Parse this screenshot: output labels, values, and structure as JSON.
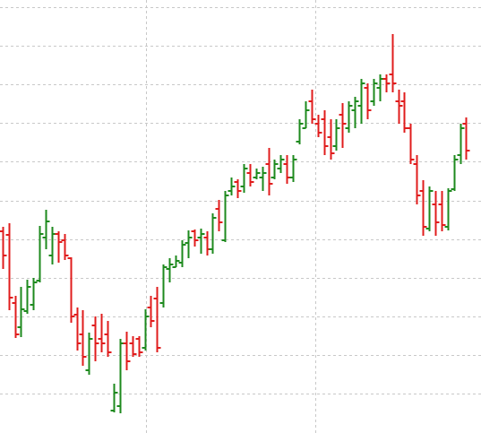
{
  "chart_data": {
    "type": "ohlc",
    "open": [
      225,
      221,
      145,
      118,
      136,
      143,
      170,
      218,
      198,
      222,
      215,
      195,
      132,
      110,
      70,
      120,
      105,
      110,
      25,
      30,
      100,
      100,
      105,
      95,
      140,
      150,
      145,
      183,
      185,
      190,
      212,
      225,
      218,
      218,
      205,
      250,
      215,
      270,
      280,
      275,
      290,
      285,
      285,
      300,
      285,
      295,
      300,
      285,
      325,
      340,
      370,
      345,
      350,
      330,
      320,
      355,
      340,
      360,
      365,
      385,
      370,
      385,
      395,
      400,
      370,
      370,
      340,
      300,
      270,
      228,
      255,
      255,
      230,
      272,
      310,
      345
    ],
    "high": [
      230,
      234,
      153,
      163,
      171,
      173,
      231,
      249,
      230,
      225,
      222,
      196,
      140,
      137,
      112,
      130,
      133,
      125,
      55,
      105,
      113,
      108,
      108,
      138,
      153,
      163,
      188,
      195,
      198,
      215,
      226,
      227,
      228,
      225,
      245,
      260,
      270,
      285,
      283,
      300,
      300,
      295,
      297,
      318,
      305,
      310,
      310,
      310,
      350,
      370,
      383,
      355,
      360,
      350,
      350,
      368,
      370,
      375,
      395,
      390,
      395,
      400,
      400,
      445,
      383,
      380,
      345,
      310,
      282,
      275,
      270,
      270,
      273,
      310,
      345,
      352
    ],
    "low": [
      183,
      137,
      106,
      107,
      133,
      137,
      168,
      205,
      188,
      190,
      193,
      123,
      92,
      75,
      65,
      80,
      90,
      85,
      23,
      22,
      70,
      85,
      85,
      92,
      118,
      90,
      140,
      168,
      185,
      185,
      195,
      208,
      200,
      198,
      200,
      225,
      213,
      265,
      262,
      268,
      275,
      283,
      270,
      265,
      283,
      290,
      278,
      280,
      322,
      340,
      345,
      330,
      310,
      305,
      315,
      318,
      335,
      340,
      345,
      350,
      365,
      370,
      380,
      380,
      345,
      335,
      300,
      255,
      220,
      225,
      220,
      225,
      226,
      270,
      300,
      305
    ],
    "close": [
      198,
      151,
      110,
      138,
      163,
      168,
      222,
      236,
      222,
      213,
      198,
      130,
      100,
      85,
      105,
      100,
      100,
      90,
      45,
      100,
      80,
      88,
      90,
      130,
      125,
      95,
      185,
      188,
      192,
      210,
      218,
      215,
      222,
      205,
      240,
      235,
      265,
      275,
      270,
      295,
      280,
      290,
      290,
      278,
      300,
      305,
      285,
      305,
      345,
      360,
      350,
      335,
      320,
      312,
      340,
      345,
      365,
      370,
      390,
      360,
      390,
      395,
      390,
      390,
      365,
      340,
      305,
      265,
      230,
      270,
      235,
      232,
      270,
      305,
      340,
      315
    ],
    "up_color": "#1e8a1e",
    "down_color": "#e01c1c",
    "xlim": [
      -0.4,
      77.4
    ],
    "xticks": [
      23.2,
      50.6
    ],
    "ylim": [
      0,
      483
    ],
    "yticks": [
      44,
      87,
      130,
      173,
      216,
      259,
      303,
      346,
      389,
      432,
      475
    ],
    "grid": true
  }
}
